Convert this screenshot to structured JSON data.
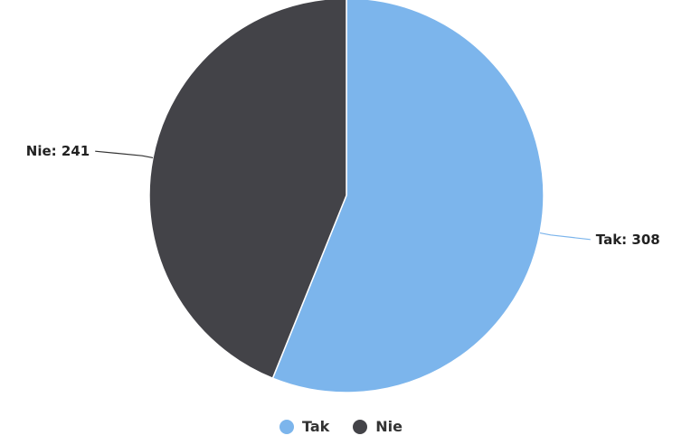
{
  "chart_data": {
    "type": "pie",
    "title": "",
    "slices": [
      {
        "name": "Tak",
        "value": 308,
        "label": "Tak: 308",
        "color": "#7cb5ec"
      },
      {
        "name": "Nie",
        "value": 241,
        "label": "Nie: 241",
        "color": "#434348"
      }
    ],
    "legend_position": "bottom"
  },
  "legend": {
    "items": [
      {
        "label": "Tak",
        "color": "#7cb5ec"
      },
      {
        "label": "Nie",
        "color": "#434348"
      }
    ]
  }
}
